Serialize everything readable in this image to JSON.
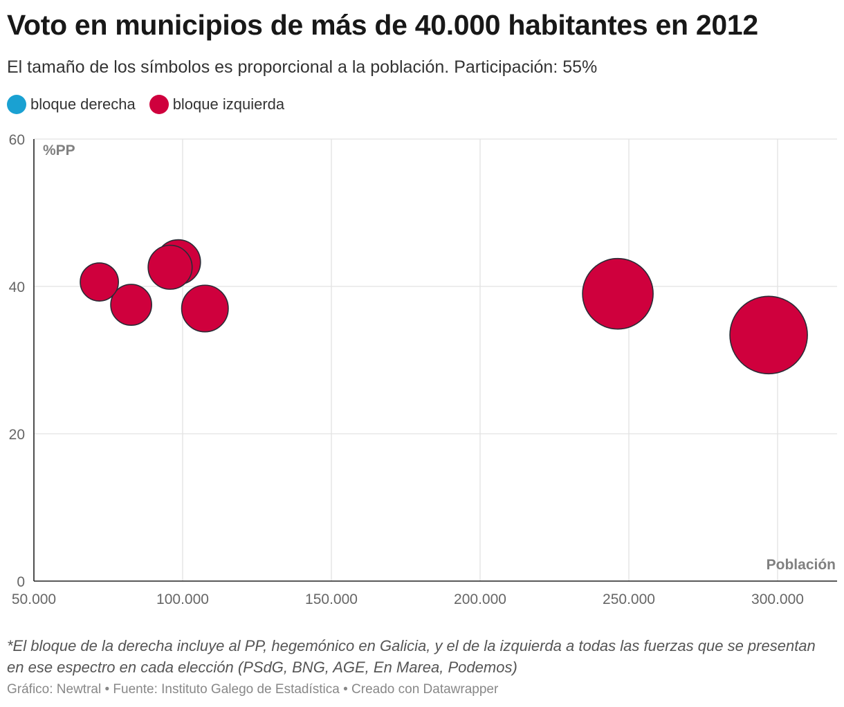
{
  "title": "Voto en municipios de más de 40.000 habitantes en 2012",
  "subtitle": "El tamaño de los símbolos es proporcional a la población. Participación: 55%",
  "legend": [
    {
      "label": "bloque derecha",
      "color": "#1aa1d2"
    },
    {
      "label": "bloque izquierda",
      "color": "#cf003d"
    }
  ],
  "note": "*El bloque de la derecha incluye al PP, hegemónico en Galicia, y el de la izquierda a todas las fuerzas que se presentan en ese espectro en cada elección (PSdG, BNG, AGE, En Marea, Podemos)",
  "credits": "Gráfico: Newtral • Fuente: Instituto Galego de Estadística • Creado con Datawrapper",
  "chart_data": {
    "type": "scatter",
    "xlabel": "Población",
    "ylabel": "%PP",
    "xlim": [
      50000,
      320000
    ],
    "ylim": [
      0,
      60
    ],
    "x_ticks": [
      50000,
      100000,
      150000,
      200000,
      250000,
      300000
    ],
    "x_tick_labels": [
      "50.000",
      "100.000",
      "150.000",
      "200.000",
      "250.000",
      "300.000"
    ],
    "y_ticks": [
      0,
      20,
      40,
      60
    ],
    "y_tick_labels": [
      "0",
      "20",
      "40",
      "60"
    ],
    "grid": true,
    "series": [
      {
        "name": "bloque izquierda",
        "color": "#cf003d",
        "points": [
          {
            "x": 72000,
            "y": 40.6
          },
          {
            "x": 82700,
            "y": 37.5
          },
          {
            "x": 98500,
            "y": 43.3
          },
          {
            "x": 95800,
            "y": 42.6
          },
          {
            "x": 107500,
            "y": 37.0
          },
          {
            "x": 246300,
            "y": 39.0
          },
          {
            "x": 297000,
            "y": 33.4
          }
        ]
      }
    ]
  }
}
